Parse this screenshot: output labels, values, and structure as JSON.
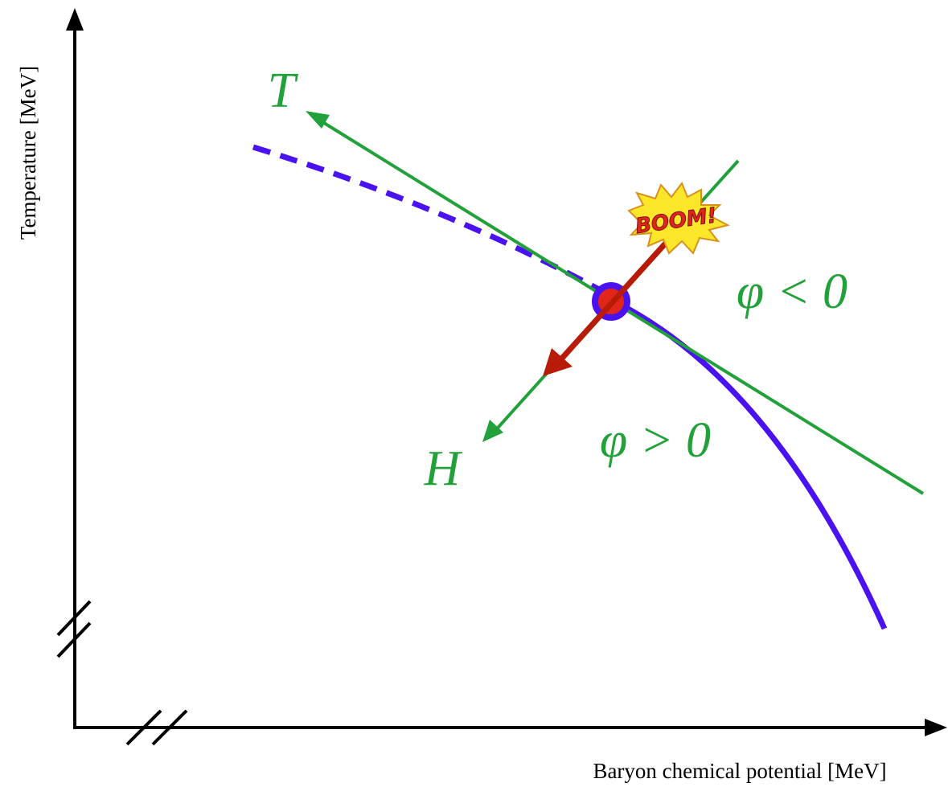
{
  "axes": {
    "x_label": "Baryon chemical potential [MeV]",
    "y_label": "Temperature [MeV]"
  },
  "labels": {
    "t": "T",
    "h": "H",
    "phi_negative": "φ < 0",
    "phi_positive": "φ > 0",
    "boom": "BOOM!"
  }
}
